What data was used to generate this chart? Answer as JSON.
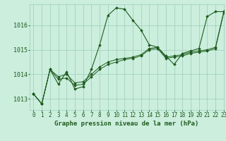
{
  "title": "Graphe pression niveau de la mer (hPa)",
  "background_color": "#cceedd",
  "plot_bg_color": "#cceedd",
  "grid_color": "#99ccbb",
  "line_color": "#1e5c1e",
  "marker_color": "#1e5c1e",
  "xlim": [
    -0.5,
    23
  ],
  "ylim": [
    1012.55,
    1016.85
  ],
  "yticks": [
    1013,
    1014,
    1015,
    1016
  ],
  "xticks": [
    0,
    1,
    2,
    3,
    4,
    5,
    6,
    7,
    8,
    9,
    10,
    11,
    12,
    13,
    14,
    15,
    16,
    17,
    18,
    19,
    20,
    21,
    22,
    23
  ],
  "series0": [
    1013.2,
    1012.8,
    1014.2,
    1013.6,
    1014.1,
    1013.4,
    1013.5,
    1014.2,
    1015.2,
    1016.4,
    1016.7,
    1016.65,
    1016.2,
    1015.8,
    1015.2,
    1015.1,
    1014.75,
    1014.4,
    1014.85,
    1014.95,
    1015.05,
    1016.35,
    1016.55,
    1016.55
  ],
  "series1": [
    1013.2,
    1012.8,
    1014.2,
    1013.8,
    1013.85,
    1013.55,
    1013.6,
    1013.9,
    1014.2,
    1014.4,
    1014.5,
    1014.6,
    1014.65,
    1014.75,
    1015.0,
    1015.05,
    1014.65,
    1014.7,
    1014.75,
    1014.85,
    1014.9,
    1014.95,
    1015.05,
    1016.5
  ],
  "series2": [
    1013.2,
    1012.8,
    1014.2,
    1013.9,
    1014.0,
    1013.65,
    1013.7,
    1014.0,
    1014.3,
    1014.5,
    1014.6,
    1014.65,
    1014.7,
    1014.8,
    1015.05,
    1015.1,
    1014.7,
    1014.75,
    1014.8,
    1014.9,
    1014.95,
    1015.0,
    1015.1,
    1016.55
  ],
  "xlabel_fontsize": 5.5,
  "ylabel_fontsize": 6,
  "title_fontsize": 6.5
}
